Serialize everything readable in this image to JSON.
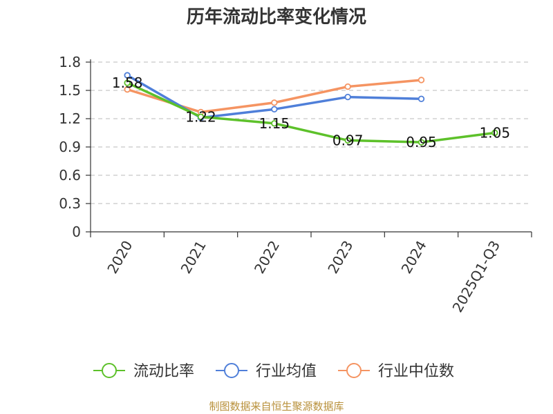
{
  "source": "制图数据来自恒生聚源数据库",
  "chart_data": {
    "type": "line",
    "title": "历年流动比率变化情况",
    "xlabel": "",
    "ylabel": "",
    "categories": [
      "2020",
      "2021",
      "2022",
      "2023",
      "2024",
      "2025Q1-Q3"
    ],
    "ylim": [
      0,
      1.8
    ],
    "yticks": [
      "0",
      "0.3",
      "0.6",
      "0.9",
      "1.2",
      "1.5",
      "1.8"
    ],
    "grid": true,
    "legend_position": "bottom",
    "series": [
      {
        "name": "流动比率",
        "color": "#5dc12a",
        "values": [
          1.58,
          1.22,
          1.15,
          0.97,
          0.95,
          1.05
        ],
        "labels": [
          "1.58",
          "1.22",
          "1.15",
          "0.97",
          "0.95",
          "1.05"
        ]
      },
      {
        "name": "行业均值",
        "color": "#4f7fd9",
        "values": [
          1.66,
          1.21,
          1.3,
          1.43,
          1.41,
          null
        ]
      },
      {
        "name": "行业中位数",
        "color": "#f59462",
        "values": [
          1.51,
          1.27,
          1.37,
          1.54,
          1.61,
          null
        ]
      }
    ]
  }
}
